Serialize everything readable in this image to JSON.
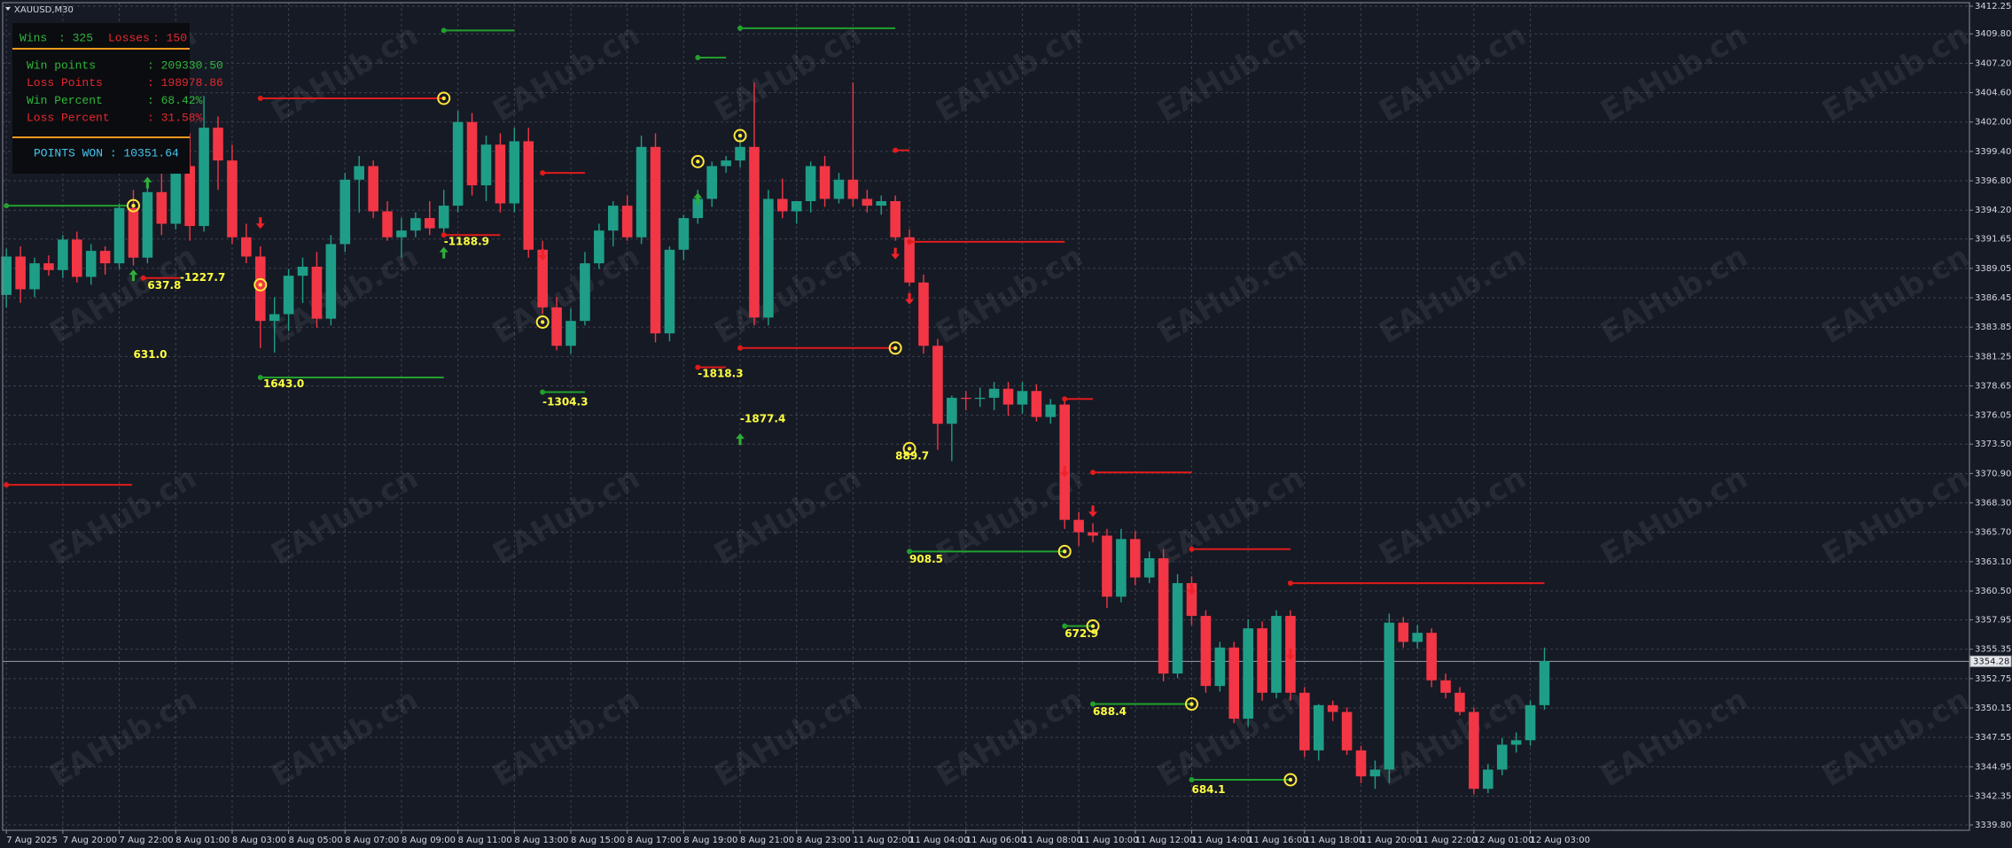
{
  "chart_data": {
    "type": "candlestick",
    "title": "XAUUSD,M30",
    "watermark": "EAHub.cn",
    "panel": {
      "wins_label": "Wins",
      "wins_value": ": 325",
      "losses_label": "Losses",
      "losses_value": ": 150",
      "rows": [
        {
          "label": "Win points",
          "value": ": 209330.50"
        },
        {
          "label": "Loss Points",
          "value": ": 198978.86"
        },
        {
          "label": "Win Percent",
          "value": ": 68.42%"
        },
        {
          "label": "Loss Percent",
          "value": ": 31.58%"
        }
      ],
      "points_won": "POINTS WON : 10351.64"
    },
    "categories": [
      "7 Aug 2025",
      null,
      null,
      null,
      "7 Aug 20:00",
      null,
      null,
      null,
      "7 Aug 22:00",
      null,
      null,
      null,
      "8 Aug 01:00",
      null,
      null,
      null,
      "8 Aug 03:00",
      null,
      null,
      null,
      "8 Aug 05:00",
      null,
      null,
      null,
      "8 Aug 07:00",
      null,
      null,
      null,
      "8 Aug 09:00",
      null,
      null,
      null,
      "8 Aug 11:00",
      null,
      null,
      null,
      "8 Aug 13:00",
      null,
      null,
      null,
      "8 Aug 15:00",
      null,
      null,
      null,
      "8 Aug 17:00",
      null,
      null,
      null,
      "8 Aug 19:00",
      null,
      null,
      null,
      "8 Aug 21:00",
      null,
      null,
      null,
      "8 Aug 23:00",
      null,
      null,
      null,
      "11 Aug 02:00",
      null,
      null,
      null,
      "11 Aug 04:00",
      null,
      null,
      null,
      "11 Aug 06:00",
      null,
      null,
      null,
      "11 Aug 08:00",
      null,
      null,
      null,
      "11 Aug 10:00",
      null,
      null,
      null,
      "11 Aug 12:00",
      null,
      null,
      null,
      "11 Aug 14:00",
      null,
      null,
      null,
      "11 Aug 16:00",
      null,
      null,
      null,
      "11 Aug 18:00",
      null,
      null,
      null,
      "11 Aug 20:00",
      null,
      null,
      null,
      "11 Aug 22:00",
      null,
      null,
      null,
      "12 Aug 01:00",
      null,
      null,
      null,
      "12 Aug 03:00",
      null
    ],
    "open": [
      3386.7,
      3390.1,
      3387.2,
      3389.5,
      3388.9,
      3391.6,
      3388.3,
      3390.6,
      3389.5,
      3394.4,
      3390.0,
      3395.8,
      3393.0,
      3398.1,
      3392.8,
      3401.5,
      3398.6,
      3391.8,
      3390.1,
      3384.4,
      3385.0,
      3388.4,
      3389.2,
      3384.6,
      3391.2,
      3396.9,
      3398.1,
      3394.1,
      3391.8,
      3392.4,
      3393.5,
      3392.6,
      3394.6,
      3402.0,
      3396.4,
      3400.0,
      3394.8,
      3400.3,
      3390.7,
      3385.6,
      3382.2,
      3384.4,
      3389.5,
      3392.4,
      3394.6,
      3391.8,
      3399.8,
      3383.3,
      3390.7,
      3393.5,
      3395.2,
      3398.1,
      3398.6,
      3399.8,
      3384.7,
      3395.2,
      3394.1,
      3395.0,
      3398.1,
      3395.2,
      3396.9,
      3395.2,
      3394.6,
      3395.0,
      3391.8,
      3387.8,
      3382.2,
      3375.3,
      3377.6,
      3377.5,
      3377.6,
      3378.4,
      3377.0,
      3378.2,
      3375.9,
      3377.0,
      3366.8,
      3365.7,
      3365.4,
      3360.0,
      3365.1,
      3361.7,
      3363.4,
      3353.2,
      3361.2,
      3358.3,
      3352.1,
      3355.5,
      3349.2,
      3357.2,
      3351.5,
      3358.3,
      3351.5,
      3346.4,
      3350.4,
      3349.8,
      3346.4,
      3344.1,
      3344.7,
      3357.7,
      3356.0,
      3356.8,
      3352.6,
      3351.5,
      3349.8,
      3343.0,
      3344.7,
      3346.9,
      3347.3,
      3350.4
    ],
    "high": [
      3390.8,
      3391.0,
      3390.0,
      3390.2,
      3392.0,
      3392.3,
      3391.2,
      3391.0,
      3394.8,
      3396.0,
      3396.5,
      3397.5,
      3398.8,
      3401.0,
      3404.3,
      3402.5,
      3400.0,
      3393.0,
      3391.0,
      3386.5,
      3389.0,
      3390.0,
      3390.5,
      3392.0,
      3397.5,
      3399.0,
      3398.6,
      3395.0,
      3393.5,
      3394.0,
      3395.0,
      3396.0,
      3403.0,
      3402.8,
      3400.8,
      3401.0,
      3401.5,
      3401.5,
      3391.5,
      3386.5,
      3385.5,
      3390.5,
      3393.0,
      3395.0,
      3395.5,
      3400.8,
      3401.0,
      3391.0,
      3393.8,
      3396.0,
      3398.5,
      3399.0,
      3400.5,
      3405.5,
      3396.0,
      3397.0,
      3395.0,
      3398.5,
      3399.0,
      3397.5,
      3405.5,
      3396.0,
      3395.5,
      3395.5,
      3392.5,
      3388.5,
      3382.8,
      3377.8,
      3378.2,
      3378.5,
      3379.0,
      3379.0,
      3379.0,
      3378.8,
      3377.5,
      3377.5,
      3367.5,
      3366.5,
      3366.0,
      3366.0,
      3365.8,
      3364.0,
      3364.2,
      3362.0,
      3361.8,
      3358.8,
      3356.0,
      3356.0,
      3358.0,
      3357.8,
      3358.8,
      3358.8,
      3352.0,
      3350.5,
      3350.8,
      3350.2,
      3346.8,
      3345.5,
      3358.5,
      3358.2,
      3357.5,
      3357.2,
      3353.2,
      3352.0,
      3350.2,
      3345.2,
      3347.5,
      3348.0,
      3350.8,
      3355.5
    ],
    "low": [
      3385.6,
      3386.0,
      3386.5,
      3388.4,
      3388.2,
      3387.8,
      3387.6,
      3388.5,
      3389.0,
      3389.3,
      3389.5,
      3392.0,
      3392.5,
      3391.5,
      3392.3,
      3396.0,
      3391.2,
      3389.5,
      3382.0,
      3381.6,
      3383.5,
      3386.0,
      3383.8,
      3384.0,
      3390.5,
      3394.0,
      3393.5,
      3391.5,
      3390.0,
      3391.8,
      3392.0,
      3391.8,
      3394.0,
      3395.5,
      3395.0,
      3394.0,
      3394.0,
      3390.0,
      3385.0,
      3381.8,
      3381.5,
      3384.0,
      3389.0,
      3391.0,
      3391.5,
      3391.2,
      3382.5,
      3382.6,
      3389.8,
      3393.0,
      3394.5,
      3397.5,
      3398.0,
      3384.0,
      3384.0,
      3393.5,
      3393.0,
      3394.0,
      3394.5,
      3394.8,
      3394.5,
      3394.0,
      3393.8,
      3391.5,
      3387.5,
      3381.5,
      3373.0,
      3372.0,
      3376.5,
      3376.8,
      3376.5,
      3376.0,
      3376.2,
      3375.5,
      3375.3,
      3366.0,
      3364.5,
      3364.8,
      3359.0,
      3359.5,
      3361.0,
      3361.2,
      3352.5,
      3352.8,
      3357.5,
      3351.5,
      3351.6,
      3348.8,
      3348.5,
      3350.8,
      3351.0,
      3350.8,
      3345.8,
      3345.5,
      3349.0,
      3346.0,
      3343.5,
      3343.0,
      3343.5,
      3355.5,
      3355.4,
      3352.0,
      3351.0,
      3349.5,
      3342.5,
      3342.6,
      3344.2,
      3346.2,
      3346.8,
      3350.0
    ],
    "close": [
      3390.1,
      3387.2,
      3389.5,
      3388.9,
      3391.6,
      3388.3,
      3390.6,
      3389.5,
      3394.4,
      3390.0,
      3395.8,
      3393.0,
      3398.1,
      3392.8,
      3401.5,
      3398.6,
      3391.8,
      3390.1,
      3384.4,
      3385.0,
      3388.4,
      3389.2,
      3384.6,
      3391.2,
      3396.9,
      3398.1,
      3394.1,
      3391.8,
      3392.4,
      3393.5,
      3392.6,
      3394.6,
      3402.0,
      3396.4,
      3400.0,
      3394.8,
      3400.3,
      3390.7,
      3385.6,
      3382.2,
      3384.4,
      3389.5,
      3392.4,
      3394.6,
      3391.8,
      3399.8,
      3383.3,
      3390.7,
      3393.5,
      3395.2,
      3398.1,
      3398.6,
      3399.8,
      3384.7,
      3395.2,
      3394.1,
      3395.0,
      3398.1,
      3395.2,
      3396.9,
      3395.2,
      3394.6,
      3395.0,
      3391.8,
      3387.8,
      3382.2,
      3375.3,
      3377.6,
      3377.5,
      3377.6,
      3378.4,
      3377.0,
      3378.2,
      3375.9,
      3377.0,
      3366.8,
      3365.7,
      3365.4,
      3360.0,
      3365.1,
      3361.7,
      3363.4,
      3353.2,
      3361.2,
      3358.3,
      3352.1,
      3355.5,
      3349.2,
      3357.2,
      3351.5,
      3358.3,
      3351.5,
      3346.4,
      3350.4,
      3349.8,
      3346.4,
      3344.1,
      3344.7,
      3357.7,
      3356.0,
      3356.8,
      3352.6,
      3351.5,
      3349.8,
      3343.0,
      3344.7,
      3346.9,
      3347.3,
      3350.4,
      3354.3
    ],
    "up_color": "#1f9e87",
    "down_color": "#f23645",
    "ylim": [
      3339.8,
      3412.25
    ],
    "yticks": [
      3412.25,
      {
        "value": 3409.8,
        "label": "3409.80"
      },
      {
        "value": 3407.2,
        "label": "3407.20"
      },
      {
        "value": 3404.6,
        "label": "3404.60"
      },
      {
        "value": 3402,
        "label": "3402.00"
      },
      {
        "value": 3399.4,
        "label": "3399.40"
      },
      {
        "value": 3396.8,
        "label": "3396.80"
      },
      {
        "value": 3394.2,
        "label": "3394.20"
      },
      3391.65,
      3389.05,
      3386.45,
      3383.85,
      3381.25,
      3378.65,
      3376.05,
      {
        "value": 3373.5,
        "label": "3373.50"
      },
      {
        "value": 3370.9,
        "label": "3370.90"
      },
      {
        "value": 3368.3,
        "label": "3368.30"
      },
      {
        "value": 3365.7,
        "label": "3365.70"
      },
      {
        "value": 3363.1,
        "label": "3363.10"
      },
      {
        "value": 3360.5,
        "label": "3360.50"
      },
      3357.95,
      3355.35,
      3352.75,
      3350.15,
      3347.55,
      3344.95,
      3342.35,
      {
        "value": 3339.8,
        "label": "3339.80"
      }
    ],
    "grid": true,
    "last_price": 3354.28,
    "levels": [
      {
        "color": "#22a02e",
        "y": 3394.6,
        "x": [
          0,
          8.6
        ]
      },
      {
        "color": "#e01b1b",
        "y": 3369.9,
        "x": [
          0,
          8.9
        ]
      },
      {
        "color": "#e01b1b",
        "y": 3388.2,
        "x": [
          9.7,
          12.3
        ]
      },
      {
        "color": "#e01b1b",
        "y": 3404.1,
        "x": [
          18,
          31
        ]
      },
      {
        "color": "#22a02e",
        "y": 3379.4,
        "x": [
          18,
          31
        ]
      },
      {
        "color": "#22a02e",
        "y": 3410.1,
        "x": [
          31,
          36
        ]
      },
      {
        "color": "#e01b1b",
        "y": 3392.0,
        "x": [
          31,
          35
        ]
      },
      {
        "color": "#e01b1b",
        "y": 3397.5,
        "x": [
          38,
          41
        ]
      },
      {
        "color": "#22a02e",
        "y": 3378.1,
        "x": [
          38,
          41
        ]
      },
      {
        "color": "#22a02e",
        "y": 3407.7,
        "x": [
          49,
          51
        ]
      },
      {
        "color": "#e01b1b",
        "y": 3380.3,
        "x": [
          49,
          51
        ]
      },
      {
        "color": "#22a02e",
        "y": 3410.3,
        "x": [
          52,
          63
        ]
      },
      {
        "color": "#e01b1b",
        "y": 3382.0,
        "x": [
          52,
          63
        ]
      },
      {
        "color": "#e01b1b",
        "y": 3399.5,
        "x": [
          63,
          64
        ]
      },
      {
        "color": "#e01b1b",
        "y": 3391.4,
        "x": [
          64,
          75
        ]
      },
      {
        "color": "#22a02e",
        "y": 3364.0,
        "x": [
          64,
          75
        ]
      },
      {
        "color": "#e01b1b",
        "y": 3377.5,
        "x": [
          75,
          77
        ]
      },
      {
        "color": "#22a02e",
        "y": 3357.4,
        "x": [
          75,
          77
        ]
      },
      {
        "color": "#e01b1b",
        "y": 3371.0,
        "x": [
          77,
          84
        ]
      },
      {
        "color": "#22a02e",
        "y": 3350.5,
        "x": [
          77,
          84
        ]
      },
      {
        "color": "#e01b1b",
        "y": 3364.2,
        "x": [
          84,
          91
        ]
      },
      {
        "color": "#22a02e",
        "y": 3343.8,
        "x": [
          84,
          91
        ]
      },
      {
        "color": "#e01b1b",
        "y": 3361.2,
        "x": [
          91,
          109
        ]
      }
    ],
    "circles": [
      [
        9,
        3394.6
      ],
      [
        31,
        3404.1
      ],
      [
        18,
        3387.6
      ],
      [
        38,
        3384.3
      ],
      [
        49,
        3398.5
      ],
      [
        52,
        3400.8
      ],
      [
        63,
        3382.0
      ],
      [
        64,
        3373.1
      ],
      [
        75,
        3364.0
      ],
      [
        77,
        3357.4
      ],
      [
        84,
        3350.5
      ],
      [
        91,
        3343.8
      ]
    ],
    "circle_color": "#ffe83a",
    "arrows_up": [
      [
        10,
        3396.6
      ],
      [
        9,
        3388.4
      ],
      [
        31,
        3390.4
      ],
      [
        49,
        3395.2
      ],
      [
        52,
        3373.9
      ]
    ],
    "arrows_down": [
      [
        18,
        3393.1
      ],
      [
        38,
        3390.3
      ],
      [
        63,
        3390.4
      ],
      [
        64,
        3386.4
      ],
      [
        75,
        3371.1
      ],
      [
        77,
        3367.6
      ],
      [
        84,
        3360.7
      ],
      [
        91,
        3354.9
      ]
    ],
    "annotation_color": "#ffff40",
    "annotations": [
      {
        "text": "-1227.7",
        "x": 12.3,
        "y": 3388.2
      },
      {
        "text": "637.8",
        "x": 10,
        "y": 3387.5
      },
      {
        "text": "631.0",
        "x": 9,
        "y": 3381.4
      },
      {
        "text": "1643.0",
        "x": 18.2,
        "y": 3378.8
      },
      {
        "text": "-1188.9",
        "x": 31,
        "y": 3391.4
      },
      {
        "text": "-1304.3",
        "x": 38,
        "y": 3377.2
      },
      {
        "text": "-1818.3",
        "x": 49,
        "y": 3379.7
      },
      {
        "text": "-1877.4",
        "x": 52,
        "y": 3375.7
      },
      {
        "text": "889.7",
        "x": 63,
        "y": 3372.4
      },
      {
        "text": "908.5",
        "x": 64,
        "y": 3363.3
      },
      {
        "text": "672.9",
        "x": 75,
        "y": 3356.7
      },
      {
        "text": "688.4",
        "x": 77,
        "y": 3349.8
      },
      {
        "text": "684.1",
        "x": 84,
        "y": 3342.9
      }
    ]
  }
}
